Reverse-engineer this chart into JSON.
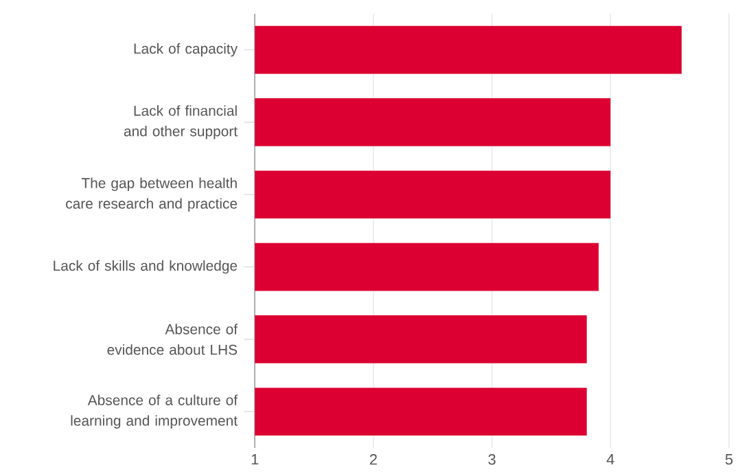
{
  "chart_data": {
    "type": "bar",
    "orientation": "horizontal",
    "categories": [
      "Lack of capacity",
      "Lack of financial and other support",
      "The gap between health care research and practice",
      "Lack of skills and knowledge",
      "Absence of evidence about LHS",
      "Absence of a culture of learning and improvement"
    ],
    "values": [
      4.6,
      4.0,
      4.0,
      3.9,
      3.8,
      3.8
    ],
    "color": "#dc0032",
    "xlim": [
      1,
      5
    ],
    "xticks": [
      1,
      2,
      3,
      4,
      5
    ],
    "grid": "x"
  }
}
